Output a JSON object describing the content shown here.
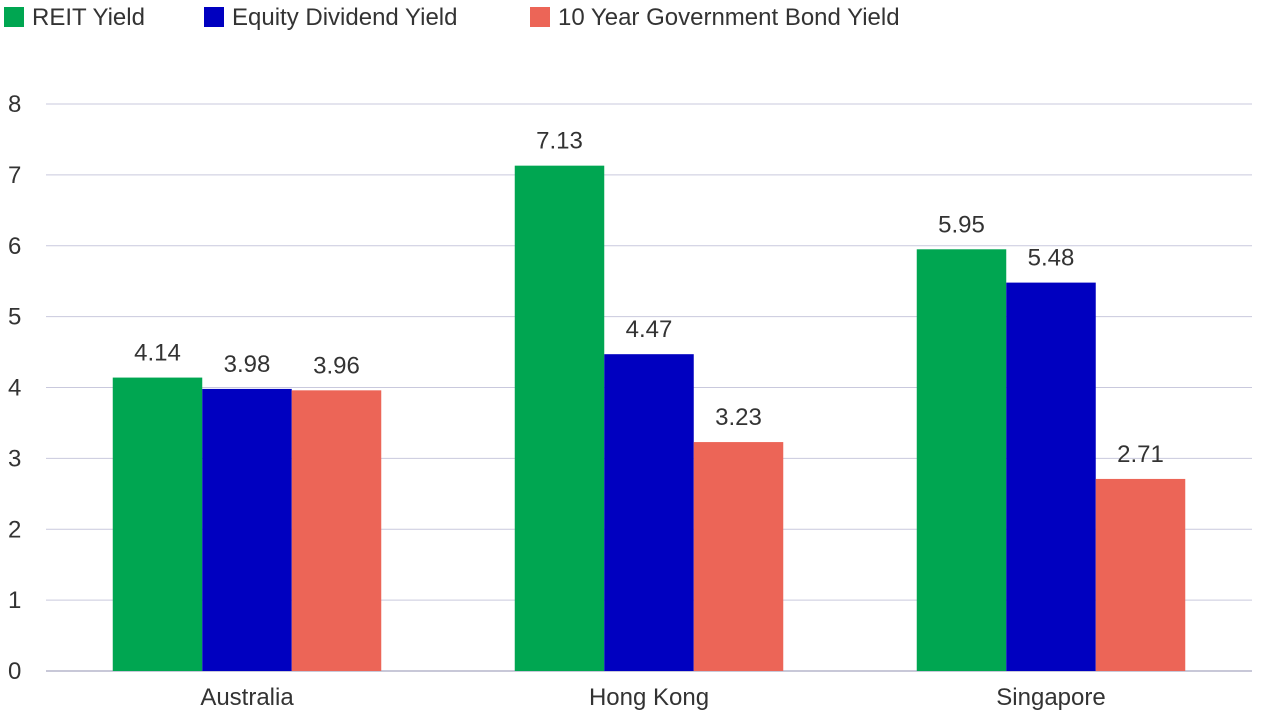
{
  "chart_data": {
    "type": "bar",
    "title": "",
    "xlabel": "",
    "ylabel": "",
    "categories": [
      "Australia",
      "Hong Kong",
      "Singapore"
    ],
    "series": [
      {
        "name": "REIT Yield",
        "color": "#00a651",
        "values": [
          4.14,
          7.13,
          5.95
        ]
      },
      {
        "name": "Equity Dividend Yield",
        "color": "#0000c0",
        "values": [
          3.98,
          4.47,
          5.48
        ]
      },
      {
        "name": "10 Year Government Bond Yield",
        "color": "#ec6557",
        "values": [
          3.96,
          3.23,
          2.71
        ]
      }
    ],
    "data_labels": [
      [
        "4.14",
        "7.13",
        "5.95"
      ],
      [
        "3.98",
        "4.47",
        "5.48"
      ],
      [
        "3.96",
        "3.23",
        "2.71"
      ]
    ],
    "ylim": [
      0,
      8
    ],
    "yticks": [
      "0",
      "1",
      "2",
      "3",
      "4",
      "5",
      "6",
      "7",
      "8"
    ],
    "grid": true,
    "legend_position": "top-left"
  }
}
